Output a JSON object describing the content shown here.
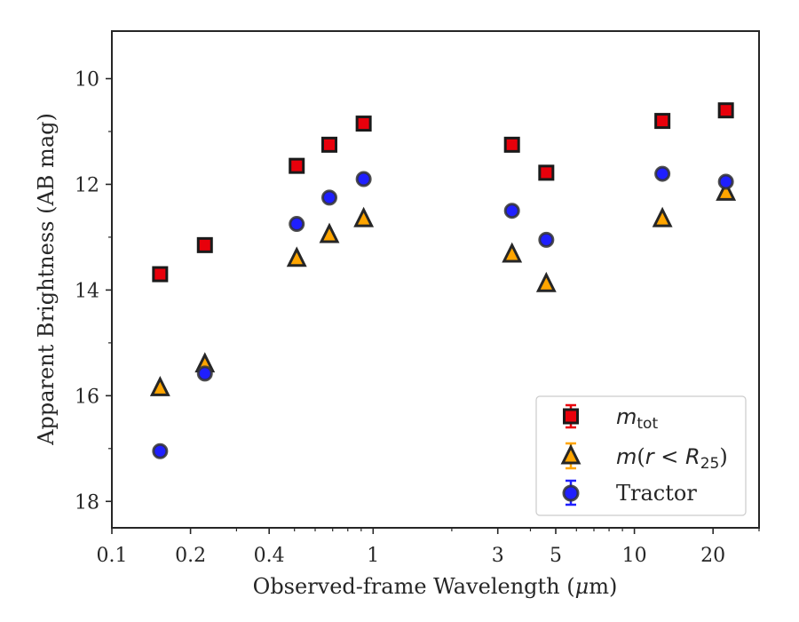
{
  "chart_data": {
    "type": "scatter",
    "xscale": "log",
    "xlim": [
      0.1,
      30
    ],
    "ylim": [
      18.5,
      9.1
    ],
    "y_inverted": true,
    "xlabel_prefix": "Observed-frame Wavelength (",
    "xlabel_mu": "μ",
    "xlabel_suffix": "m)",
    "ylabel": "Apparent Brightness (AB mag)",
    "x_ticks": [
      {
        "value": 0.1,
        "label": "0.1"
      },
      {
        "value": 0.2,
        "label": "0.2"
      },
      {
        "value": 0.4,
        "label": "0.4"
      },
      {
        "value": 1,
        "label": "1"
      },
      {
        "value": 3,
        "label": "3"
      },
      {
        "value": 5,
        "label": "5"
      },
      {
        "value": 10,
        "label": "10"
      },
      {
        "value": 20,
        "label": "20"
      }
    ],
    "x_minor_ticks": [
      0.3,
      0.5,
      0.6,
      0.7,
      0.8,
      0.9,
      2,
      4,
      6,
      7,
      8,
      9,
      30
    ],
    "y_ticks": [
      {
        "value": 10,
        "label": "10"
      },
      {
        "value": 12,
        "label": "12"
      },
      {
        "value": 14,
        "label": "14"
      },
      {
        "value": 16,
        "label": "16"
      },
      {
        "value": 18,
        "label": "18"
      }
    ],
    "y_minor_ticks": [
      11,
      13,
      15,
      17
    ],
    "grid": false,
    "legend_position": "lower-right",
    "x": [
      0.153,
      0.227,
      0.51,
      0.68,
      0.92,
      3.4,
      4.6,
      12.8,
      22.4
    ],
    "series": [
      {
        "name_main": "m",
        "name_sub": "tot",
        "marker": "square",
        "color": "#e8000b",
        "edge": "#1a1a1a",
        "values": [
          13.7,
          13.15,
          11.65,
          11.25,
          10.85,
          11.25,
          11.78,
          10.8,
          10.6
        ]
      },
      {
        "name_prefix": "m",
        "name_paren_open": "(",
        "name_r": "r",
        "name_lt": " < ",
        "name_R": "R",
        "name_sub": "25",
        "name_paren_close": ")",
        "marker": "triangle",
        "color": "#ffa500",
        "edge": "#262626",
        "values": [
          15.85,
          15.4,
          13.4,
          12.95,
          12.65,
          13.32,
          13.88,
          12.65,
          12.15
        ]
      },
      {
        "name": "Tractor",
        "marker": "circle",
        "color": "#1f1fff",
        "edge": "#333333",
        "values": [
          17.05,
          15.58,
          12.75,
          12.25,
          11.9,
          12.5,
          13.05,
          11.8,
          11.95
        ]
      }
    ]
  }
}
